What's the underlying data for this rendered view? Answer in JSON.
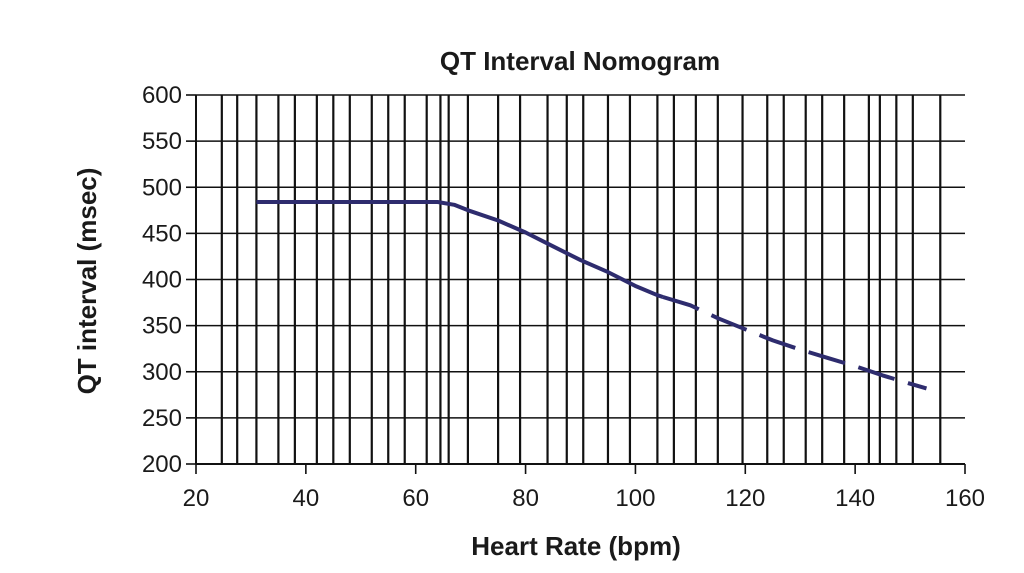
{
  "chart_data": {
    "type": "line",
    "title": "QT Interval Nomogram",
    "xlabel": "Heart Rate (bpm)",
    "ylabel": "QT interval (msec)",
    "xlim": [
      20,
      160
    ],
    "ylim": [
      200,
      600
    ],
    "x_ticks": [
      "20",
      "40",
      "60",
      "80",
      "100",
      "120",
      "140",
      "160"
    ],
    "y_ticks": [
      "200",
      "250",
      "300",
      "350",
      "400",
      "450",
      "500",
      "550",
      "600"
    ],
    "vertical_grid_x": [
      24.7,
      27.5,
      31,
      35,
      38,
      42,
      45,
      48,
      52,
      55,
      58,
      62,
      64.5,
      66,
      69.5,
      75,
      79,
      84,
      87.5,
      90.5,
      95,
      99,
      104,
      107,
      111,
      115,
      119.5,
      124,
      127,
      131,
      134,
      138,
      142.5,
      144.5,
      147.5,
      150.5,
      155.5
    ],
    "horizontal_grid": true,
    "line_color": "#2e2c6e",
    "series": [
      {
        "style": "solid",
        "points": [
          [
            31,
            484
          ],
          [
            64,
            484
          ],
          [
            67,
            481
          ],
          [
            70,
            474
          ],
          [
            75,
            464
          ],
          [
            80,
            451
          ],
          [
            85,
            436
          ],
          [
            90,
            421
          ],
          [
            95,
            408
          ],
          [
            100,
            393
          ],
          [
            104,
            383
          ],
          [
            105,
            381
          ]
        ]
      },
      {
        "style": "dashed",
        "points": [
          [
            105,
            381
          ],
          [
            110,
            372
          ],
          [
            115,
            358
          ],
          [
            120,
            346
          ],
          [
            125,
            334
          ],
          [
            130,
            324
          ],
          [
            135,
            315
          ],
          [
            140,
            306
          ],
          [
            145,
            296
          ],
          [
            150,
            287
          ],
          [
            153,
            282
          ]
        ]
      }
    ]
  }
}
